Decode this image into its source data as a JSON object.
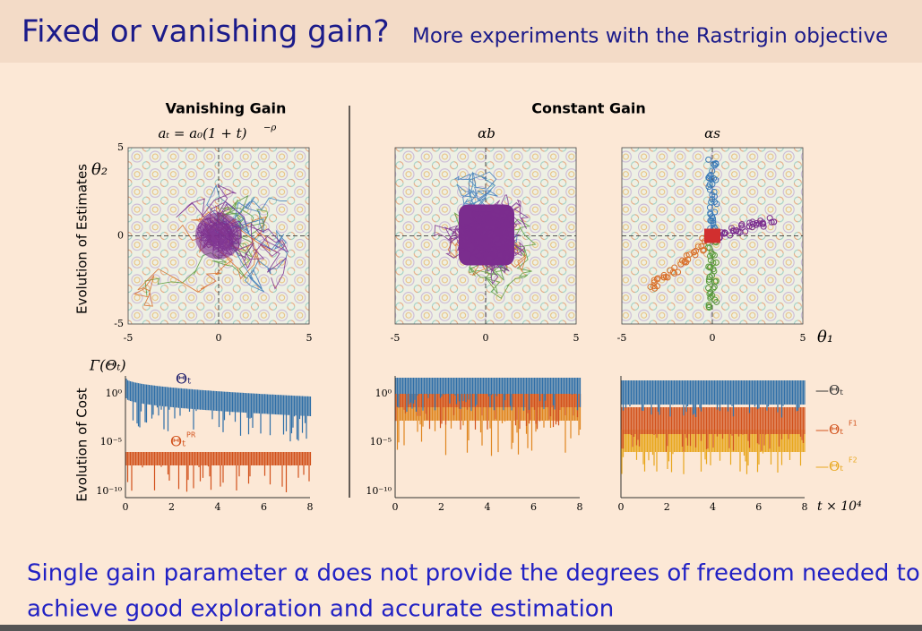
{
  "header": {
    "title": "Fixed or vanishing gain?",
    "subtitle": "More experiments with the Rastrigin objective"
  },
  "vanishing": {
    "title": "Vanishing Gain",
    "formula": "aₜ = a₀(1 + t)",
    "formula_exp": "−ρ"
  },
  "constant": {
    "title": "Constant Gain",
    "left": "αb",
    "right": "αs"
  },
  "axes": {
    "estimates_label": "Evolution of Estimates",
    "cost_label": "Evolution of Cost",
    "theta2": "θ₂",
    "theta1": "θ₁",
    "cost_symbol": "Γ(Θₜ)",
    "time_unit": "t × 10⁴",
    "space_ticks": [
      -5,
      0,
      5
    ],
    "time_ticks": [
      0,
      2,
      4,
      6,
      8
    ],
    "cost_ticks": [
      "10⁰",
      "10⁻⁵",
      "10⁻¹⁰"
    ]
  },
  "annotations": [
    {
      "text": "Θₜ",
      "sup": ""
    },
    {
      "text": "Θₜ",
      "sup": "PR"
    }
  ],
  "legend": [
    {
      "name": "—Θₜ",
      "sup": ""
    },
    {
      "name": "—Θₜ",
      "sup": "F1"
    },
    {
      "name": "—Θₜ",
      "sup": "F2"
    }
  ],
  "footer": [
    "Single gain parameter α does not provide the degrees of freedom needed to",
    "achieve good exploration and accurate estimation"
  ]
}
